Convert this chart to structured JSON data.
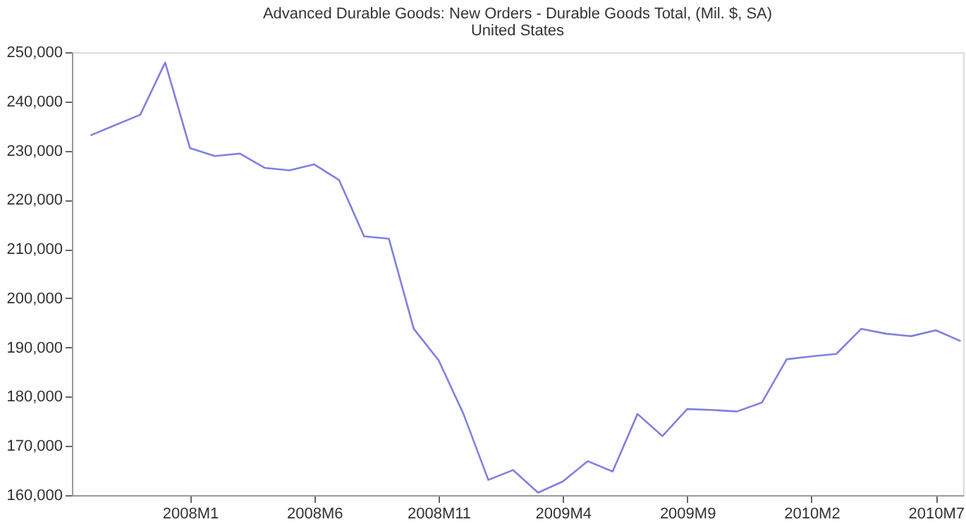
{
  "chart_data": {
    "type": "line",
    "title": "Advanced Durable Goods: New Orders - Durable Goods Total, (Mil. $, SA)",
    "subtitle": "United States",
    "categories": [
      null,
      null,
      null,
      null,
      "2008M1",
      null,
      null,
      null,
      null,
      "2008M6",
      null,
      null,
      null,
      null,
      "2008M11",
      null,
      null,
      null,
      null,
      "2009M4",
      null,
      null,
      null,
      null,
      "2009M9",
      null,
      null,
      null,
      null,
      "2010M2",
      null,
      null,
      null,
      null,
      "2010M7",
      null
    ],
    "series": [
      {
        "color": "#8080e0",
        "values": [
          233100,
          235200,
          237300,
          247900,
          230500,
          228900,
          229400,
          226500,
          226000,
          227200,
          224000,
          212600,
          212100,
          193800,
          187400,
          176500,
          163100,
          165100,
          160500,
          162800,
          166900,
          164800,
          176500,
          172000,
          177500,
          177300,
          177000,
          178800,
          187600,
          188200,
          188700,
          193800,
          192800,
          192300,
          193500,
          191300
        ]
      }
    ],
    "ylim": [
      160000,
      250000
    ],
    "yticks": [
      {
        "value": 160000,
        "label": "160,000"
      },
      {
        "value": 170000,
        "label": "170,000"
      },
      {
        "value": 180000,
        "label": "180,000"
      },
      {
        "value": 190000,
        "label": "190,000"
      },
      {
        "value": 200000,
        "label": "200,000"
      },
      {
        "value": 210000,
        "label": "210,000"
      },
      {
        "value": 220000,
        "label": "220,000"
      },
      {
        "value": 230000,
        "label": "230,000"
      },
      {
        "value": 240000,
        "label": "240,000"
      },
      {
        "value": 250000,
        "label": "250,000"
      }
    ],
    "marker": "none",
    "line_style": "solid"
  }
}
